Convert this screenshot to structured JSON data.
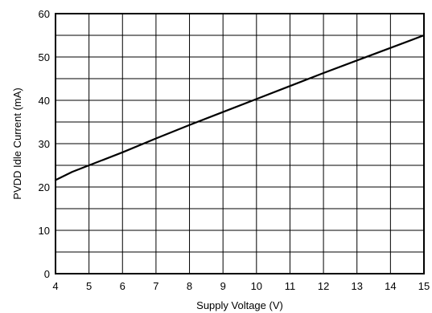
{
  "chart_data": {
    "type": "line",
    "title": "",
    "xlabel": "Supply Voltage (V)",
    "ylabel": "PVDD Idle Current (mA)",
    "xlim": [
      4,
      15
    ],
    "ylim": [
      0,
      60
    ],
    "x_ticks": [
      "4",
      "5",
      "6",
      "7",
      "8",
      "9",
      "10",
      "11",
      "12",
      "13",
      "14",
      "15"
    ],
    "y_ticks": [
      "0",
      "10",
      "20",
      "30",
      "40",
      "50",
      "60"
    ],
    "x_minor_step": 1,
    "y_minor_step": 5,
    "grid": true,
    "legend": "none",
    "series": [
      {
        "line_color": "#000000",
        "x": [
          4,
          4.5,
          5,
          6,
          7,
          8,
          9,
          10,
          11,
          12,
          13,
          14,
          15
        ],
        "y": [
          21.6,
          23.5,
          25.0,
          28.0,
          31.2,
          34.3,
          37.3,
          40.3,
          43.3,
          46.3,
          49.2,
          52.1,
          55.0
        ]
      }
    ]
  }
}
